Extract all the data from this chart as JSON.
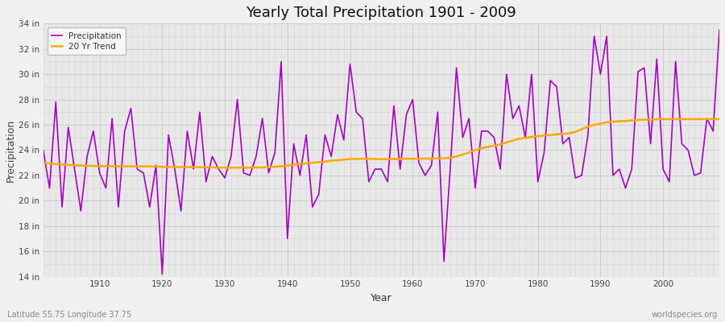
{
  "title": "Yearly Total Precipitation 1901 - 2009",
  "xlabel": "Year",
  "ylabel": "Precipitation",
  "lat_lon_label": "Latitude 55.75 Longitude 37.75",
  "watermark": "worldspecies.org",
  "fig_bg_color": "#f0f0f0",
  "plot_bg_color": "#e8e8e8",
  "precip_color": "#aa00cc",
  "trend_color": "#ffaa00",
  "precip_linewidth": 1.2,
  "trend_linewidth": 1.8,
  "ylim_min": 14,
  "ylim_max": 34,
  "yticks": [
    14,
    16,
    18,
    20,
    22,
    24,
    26,
    28,
    30,
    32,
    34
  ],
  "ytick_labels": [
    "14 in",
    "16 in",
    "18 in",
    "20 in",
    "22 in",
    "24 in",
    "26 in",
    "28 in",
    "30 in",
    "32 in",
    "34 in"
  ],
  "xlim_min": 1901,
  "xlim_max": 2009,
  "years": [
    1901,
    1902,
    1903,
    1904,
    1905,
    1906,
    1907,
    1908,
    1909,
    1910,
    1911,
    1912,
    1913,
    1914,
    1915,
    1916,
    1917,
    1918,
    1919,
    1920,
    1921,
    1922,
    1923,
    1924,
    1925,
    1926,
    1927,
    1928,
    1929,
    1930,
    1931,
    1932,
    1933,
    1934,
    1935,
    1936,
    1937,
    1938,
    1939,
    1940,
    1941,
    1942,
    1943,
    1944,
    1945,
    1946,
    1947,
    1948,
    1949,
    1950,
    1951,
    1952,
    1953,
    1954,
    1955,
    1956,
    1957,
    1958,
    1959,
    1960,
    1961,
    1962,
    1963,
    1964,
    1965,
    1966,
    1967,
    1968,
    1969,
    1970,
    1971,
    1972,
    1973,
    1974,
    1975,
    1976,
    1977,
    1978,
    1979,
    1980,
    1981,
    1982,
    1983,
    1984,
    1985,
    1986,
    1987,
    1988,
    1989,
    1990,
    1991,
    1992,
    1993,
    1994,
    1995,
    1996,
    1997,
    1998,
    1999,
    2000,
    2001,
    2002,
    2003,
    2004,
    2005,
    2006,
    2007,
    2008,
    2009
  ],
  "precip": [
    24.0,
    21.0,
    27.8,
    19.5,
    25.8,
    22.5,
    19.2,
    23.5,
    25.5,
    22.2,
    21.0,
    26.5,
    19.5,
    25.5,
    27.3,
    22.5,
    22.2,
    19.5,
    22.8,
    14.2,
    25.2,
    22.5,
    19.2,
    25.5,
    22.5,
    27.0,
    21.5,
    23.5,
    22.5,
    21.8,
    23.5,
    28.0,
    22.2,
    22.0,
    23.5,
    26.5,
    22.2,
    23.8,
    31.0,
    17.0,
    24.5,
    22.0,
    25.2,
    19.5,
    20.5,
    25.2,
    23.5,
    26.8,
    24.8,
    30.8,
    27.0,
    26.5,
    21.5,
    22.5,
    22.5,
    21.5,
    27.5,
    22.5,
    26.8,
    28.0,
    23.0,
    22.0,
    22.8,
    27.0,
    15.2,
    22.5,
    30.5,
    25.0,
    26.5,
    21.0,
    25.5,
    25.5,
    25.0,
    22.5,
    30.0,
    26.5,
    27.5,
    25.0,
    30.0,
    21.5,
    23.8,
    29.5,
    29.0,
    24.5,
    25.0,
    21.8,
    22.0,
    25.2,
    33.0,
    30.0,
    33.0,
    22.0,
    22.5,
    21.0,
    22.5,
    30.2,
    30.5,
    24.5,
    31.2,
    22.5,
    21.5,
    31.0,
    24.5,
    24.0,
    22.0,
    22.2,
    26.5,
    25.5,
    33.5
  ],
  "trend": [
    23.0,
    22.95,
    22.9,
    22.85,
    22.82,
    22.8,
    22.78,
    22.76,
    22.75,
    22.74,
    22.73,
    22.73,
    22.72,
    22.72,
    22.72,
    22.71,
    22.71,
    22.71,
    22.7,
    22.68,
    22.67,
    22.67,
    22.66,
    22.66,
    22.65,
    22.65,
    22.64,
    22.63,
    22.62,
    22.62,
    22.61,
    22.62,
    22.62,
    22.62,
    22.62,
    22.63,
    22.65,
    22.68,
    22.72,
    22.78,
    22.85,
    22.9,
    22.95,
    23.0,
    23.05,
    23.1,
    23.15,
    23.2,
    23.25,
    23.3,
    23.3,
    23.32,
    23.32,
    23.3,
    23.28,
    23.28,
    23.3,
    23.3,
    23.32,
    23.32,
    23.32,
    23.33,
    23.33,
    23.35,
    23.35,
    23.4,
    23.5,
    23.65,
    23.8,
    24.0,
    24.15,
    24.25,
    24.35,
    24.45,
    24.6,
    24.75,
    24.9,
    24.95,
    25.05,
    25.1,
    25.15,
    25.2,
    25.25,
    25.28,
    25.32,
    25.45,
    25.65,
    25.85,
    26.0,
    26.1,
    26.2,
    26.25,
    26.28,
    26.3,
    26.35,
    26.38,
    26.4,
    26.42,
    26.44,
    26.45,
    26.45,
    26.45,
    26.45,
    26.45,
    26.45,
    26.45,
    26.45,
    26.45,
    26.45
  ]
}
